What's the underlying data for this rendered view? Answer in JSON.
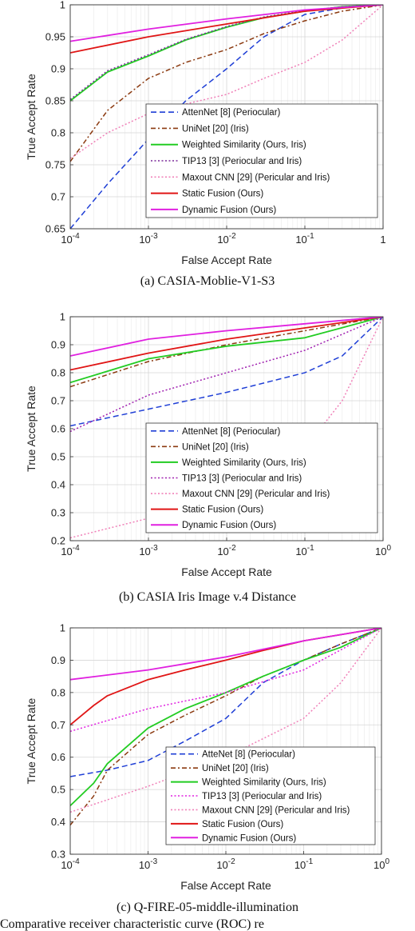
{
  "chart_data": [
    {
      "type": "line",
      "caption": "(a) CASIA-Moblie-V1-S3",
      "xlabel": "False Accept Rate",
      "ylabel": "True Accept Rate",
      "xscale": "log",
      "xlim": [
        0.0001,
        1
      ],
      "ylim": [
        0.65,
        1
      ],
      "xticks": [
        0.0001,
        0.001,
        0.01,
        0.1,
        1
      ],
      "xtick_labels": [
        [
          "10",
          "-4"
        ],
        [
          "10",
          "-3"
        ],
        [
          "10",
          "-2"
        ],
        [
          "10",
          "-1"
        ],
        [
          "1",
          ""
        ]
      ],
      "yticks": [
        0.65,
        0.7,
        0.75,
        0.8,
        0.85,
        0.9,
        0.95,
        1
      ],
      "ytick_labels": [
        "0.65",
        "0.7",
        "0.75",
        "0.8",
        "0.85",
        "0.9",
        "0.95",
        "1"
      ],
      "grid": true,
      "legend_placement": "bottom-right",
      "series": [
        {
          "name": "AttenNet [8] (Periocular)",
          "color": "#1f3fd6",
          "style": "dash",
          "x": [
            0.0001,
            0.0003,
            0.001,
            0.003,
            0.01,
            0.03,
            0.1,
            0.3,
            1
          ],
          "y": [
            0.65,
            0.72,
            0.79,
            0.85,
            0.9,
            0.95,
            0.985,
            0.995,
            1.0
          ]
        },
        {
          "name": "UniNet [20] (Iris)",
          "color": "#8b3a10",
          "style": "dashdot",
          "x": [
            0.0001,
            0.0003,
            0.001,
            0.003,
            0.01,
            0.03,
            0.1,
            0.3,
            1
          ],
          "y": [
            0.755,
            0.835,
            0.885,
            0.91,
            0.93,
            0.955,
            0.975,
            0.99,
            1.0
          ]
        },
        {
          "name": "Weighted Similarity (Ours, Iris)",
          "color": "#22cc22",
          "style": "solid",
          "x": [
            0.0001,
            0.0003,
            0.001,
            0.003,
            0.01,
            0.03,
            0.1,
            0.3,
            1
          ],
          "y": [
            0.85,
            0.895,
            0.92,
            0.945,
            0.965,
            0.98,
            0.99,
            0.997,
            1.0
          ]
        },
        {
          "name": "TIP13 [3] (Periocular and Iris)",
          "color": "#7a2a9a",
          "style": "dot",
          "x": [
            0.0001,
            0.0003,
            0.001,
            0.003,
            0.01,
            0.03,
            0.1,
            0.3,
            1
          ],
          "y": [
            0.852,
            0.897,
            0.922,
            0.946,
            0.966,
            0.981,
            0.991,
            0.997,
            1.0
          ]
        },
        {
          "name": "Maxout CNN [29] (Pericular and Iris)",
          "color": "#f080b8",
          "style": "dot",
          "x": [
            0.0001,
            0.0003,
            0.001,
            0.003,
            0.01,
            0.03,
            0.1,
            0.3,
            1
          ],
          "y": [
            0.76,
            0.8,
            0.83,
            0.845,
            0.86,
            0.885,
            0.91,
            0.945,
            1.0
          ]
        },
        {
          "name": "Static Fusion (Ours)",
          "color": "#e01515",
          "style": "solid",
          "x": [
            0.0001,
            0.001,
            0.01,
            0.1,
            1
          ],
          "y": [
            0.925,
            0.95,
            0.97,
            0.99,
            1.0
          ]
        },
        {
          "name": "Dynamic Fusion (Ours)",
          "color": "#e020e0",
          "style": "solid",
          "x": [
            0.0001,
            0.001,
            0.01,
            0.1,
            1
          ],
          "y": [
            0.943,
            0.962,
            0.978,
            0.992,
            1.0
          ]
        }
      ]
    },
    {
      "type": "line",
      "caption": "(b)  CASIA Iris Image v.4 Distance",
      "xlabel": "False Accept Rate",
      "ylabel": "True Accept Rate",
      "xscale": "log",
      "xlim": [
        0.0001,
        1
      ],
      "ylim": [
        0.2,
        1
      ],
      "xticks": [
        0.0001,
        0.001,
        0.01,
        0.1,
        1
      ],
      "xtick_labels": [
        [
          "10",
          "-4"
        ],
        [
          "10",
          "-3"
        ],
        [
          "10",
          "-2"
        ],
        [
          "10",
          "-1"
        ],
        [
          "10",
          "0"
        ]
      ],
      "yticks": [
        0.2,
        0.3,
        0.4,
        0.5,
        0.6,
        0.7,
        0.8,
        0.9,
        1
      ],
      "ytick_labels": [
        "0.2",
        "0.3",
        "0.4",
        "0.5",
        "0.6",
        "0.7",
        "0.8",
        "0.9",
        "1"
      ],
      "grid": true,
      "legend_placement": "bottom-right",
      "series": [
        {
          "name": "AttenNet [8] (Periocular)",
          "color": "#1f3fd6",
          "style": "dash",
          "x": [
            0.0001,
            0.001,
            0.01,
            0.1,
            0.3,
            1
          ],
          "y": [
            0.61,
            0.67,
            0.73,
            0.8,
            0.86,
            1.0
          ]
        },
        {
          "name": "UniNet [20] (Iris)",
          "color": "#8b3a10",
          "style": "dashdot",
          "x": [
            0.0001,
            0.001,
            0.01,
            0.1,
            1
          ],
          "y": [
            0.75,
            0.84,
            0.9,
            0.95,
            1.0
          ]
        },
        {
          "name": "Weighted Similarity (Ours, Iris)",
          "color": "#22cc22",
          "style": "solid",
          "x": [
            0.0001,
            0.001,
            0.01,
            0.1,
            1
          ],
          "y": [
            0.765,
            0.85,
            0.895,
            0.925,
            1.0
          ]
        },
        {
          "name": "TIP13 [3] (Periocular and Iris)",
          "color": "#a020b0",
          "style": "dot",
          "x": [
            0.0001,
            0.001,
            0.01,
            0.1,
            1
          ],
          "y": [
            0.59,
            0.72,
            0.8,
            0.88,
            1.0
          ]
        },
        {
          "name": "Maxout CNN [29] (Pericular and Iris)",
          "color": "#f080b8",
          "style": "dot",
          "x": [
            0.0001,
            0.001,
            0.01,
            0.1,
            0.3,
            1
          ],
          "y": [
            0.21,
            0.28,
            0.38,
            0.53,
            0.7,
            1.0
          ]
        },
        {
          "name": "Static Fusion (Ours)",
          "color": "#e01515",
          "style": "solid",
          "x": [
            0.0001,
            0.001,
            0.01,
            0.1,
            1
          ],
          "y": [
            0.81,
            0.87,
            0.92,
            0.96,
            1.0
          ]
        },
        {
          "name": "Dynamic Fusion (Ours)",
          "color": "#e020e0",
          "style": "solid",
          "x": [
            0.0001,
            0.001,
            0.01,
            0.1,
            1
          ],
          "y": [
            0.86,
            0.92,
            0.95,
            0.975,
            1.0
          ]
        }
      ]
    },
    {
      "type": "line",
      "caption": "(c) Q-FIRE-05-middle-illumination",
      "xlabel": "False Accept Rate",
      "ylabel": "True Accept Rate",
      "xscale": "log",
      "xlim": [
        0.0001,
        1
      ],
      "ylim": [
        0.3,
        1
      ],
      "xticks": [
        0.0001,
        0.001,
        0.01,
        0.1,
        1
      ],
      "xtick_labels": [
        [
          "10",
          "-4"
        ],
        [
          "10",
          "-3"
        ],
        [
          "10",
          "-2"
        ],
        [
          "10",
          "-1"
        ],
        [
          "10",
          "0"
        ]
      ],
      "yticks": [
        0.3,
        0.4,
        0.5,
        0.6,
        0.7,
        0.8,
        0.9,
        1
      ],
      "ytick_labels": [
        "0.3",
        "0.4",
        "0.5",
        "0.6",
        "0.7",
        "0.8",
        "0.9",
        "1"
      ],
      "grid": true,
      "legend_placement": "bottom-right",
      "series": [
        {
          "name": "AtteNet [8] (Periocular)",
          "color": "#1f3fd6",
          "style": "dash",
          "x": [
            0.0001,
            0.0003,
            0.001,
            0.003,
            0.01,
            0.03,
            0.1,
            0.3,
            1
          ],
          "y": [
            0.54,
            0.56,
            0.59,
            0.65,
            0.72,
            0.83,
            0.9,
            0.95,
            1.0
          ]
        },
        {
          "name": "UniNet [20] (Iris)",
          "color": "#8b3a10",
          "style": "dashdot",
          "x": [
            0.0001,
            0.0002,
            0.0003,
            0.001,
            0.003,
            0.01,
            0.03,
            0.1,
            0.3,
            1
          ],
          "y": [
            0.39,
            0.48,
            0.56,
            0.67,
            0.73,
            0.79,
            0.85,
            0.9,
            0.95,
            1.0
          ]
        },
        {
          "name": "Weighted Similarity (Ours, Iris)",
          "color": "#22cc22",
          "style": "solid",
          "x": [
            0.0001,
            0.0002,
            0.0003,
            0.001,
            0.003,
            0.01,
            0.03,
            0.1,
            0.3,
            1
          ],
          "y": [
            0.45,
            0.52,
            0.58,
            0.69,
            0.75,
            0.8,
            0.85,
            0.9,
            0.94,
            1.0
          ]
        },
        {
          "name": "TIP13 [3] (Periocular and Iris)",
          "color": "#e020e0",
          "style": "dot",
          "x": [
            0.0001,
            0.001,
            0.01,
            0.1,
            1
          ],
          "y": [
            0.68,
            0.75,
            0.8,
            0.87,
            1.0
          ]
        },
        {
          "name": "Maxout CNN [29] (Pericular and Iris)",
          "color": "#f080b8",
          "style": "dot",
          "x": [
            0.0001,
            0.001,
            0.01,
            0.1,
            0.3,
            1
          ],
          "y": [
            0.43,
            0.51,
            0.6,
            0.72,
            0.83,
            1.0
          ]
        },
        {
          "name": "Static Fusion (Ours)",
          "color": "#e01515",
          "style": "solid",
          "x": [
            0.0001,
            0.0002,
            0.0003,
            0.001,
            0.003,
            0.01,
            0.03,
            0.1,
            1
          ],
          "y": [
            0.7,
            0.76,
            0.79,
            0.84,
            0.87,
            0.9,
            0.93,
            0.96,
            1.0
          ]
        },
        {
          "name": "Dynamic Fusion (Ours)",
          "color": "#e020e0",
          "style": "solid",
          "x": [
            0.0001,
            0.001,
            0.01,
            0.1,
            1
          ],
          "y": [
            0.84,
            0.87,
            0.91,
            0.96,
            1.0
          ]
        }
      ]
    }
  ],
  "footer_caption": "Comparative receiver characteristic curve (ROC) re"
}
